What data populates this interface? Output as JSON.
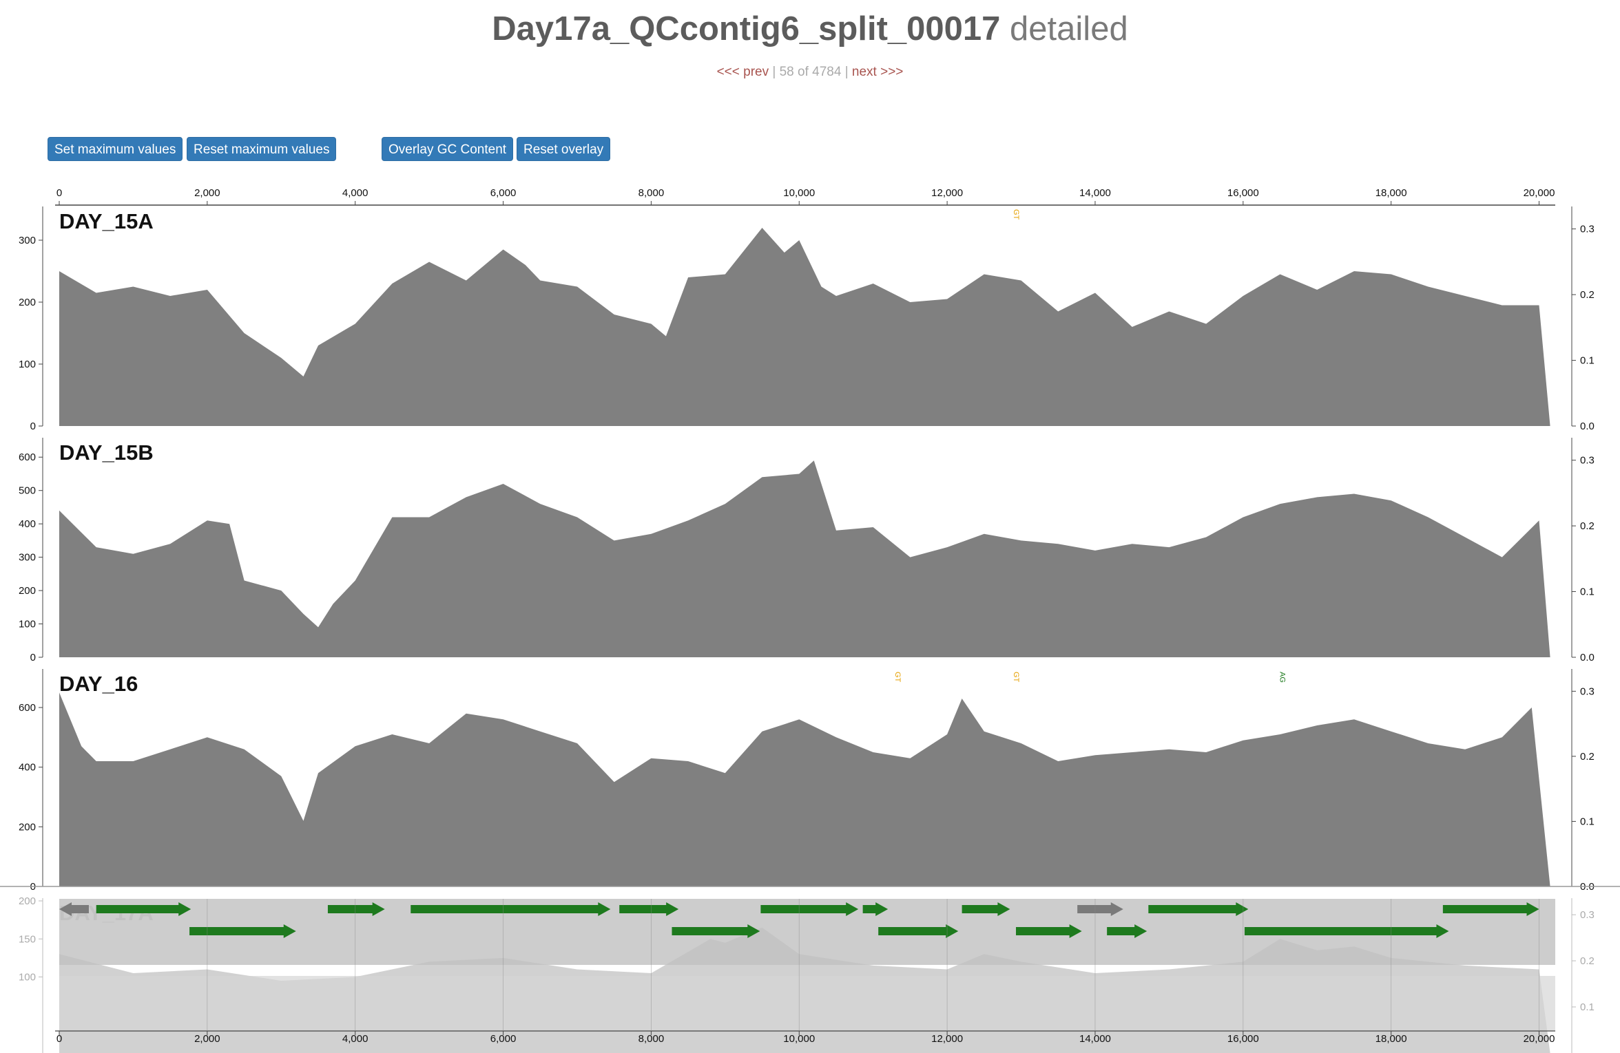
{
  "header": {
    "title": "Day17a_QCcontig6_split_00017",
    "title_suffix": "detailed",
    "nav_prev": "<<< prev",
    "nav_position": "58 of 4784",
    "nav_next": "next >>>",
    "nav_sep": "|"
  },
  "toolbar": {
    "set_max_label": "Set maximum values",
    "reset_max_label": "Reset maximum values",
    "overlay_gc_label": "Overlay GC Content",
    "reset_overlay_label": "Reset overlay"
  },
  "colors": {
    "coverage_fill": "#808080",
    "overlay_fill": "#cccccc",
    "gene_forward": "#1e7a1e",
    "gene_other": "#7a7a7a",
    "button": "#337ab7"
  },
  "chart_data": {
    "type": "area",
    "x_range": [
      0,
      20200
    ],
    "x_ticks": [
      "0",
      "2,000",
      "4,000",
      "6,000",
      "8,000",
      "10,000",
      "12,000",
      "14,000",
      "16,000",
      "18,000",
      "20,000"
    ],
    "x_tick_values": [
      0,
      2000,
      4000,
      6000,
      8000,
      10000,
      12000,
      14000,
      16000,
      18000,
      20000
    ],
    "right_axis_ticks": [
      "0.0",
      "0.1",
      "0.2",
      "0.3"
    ],
    "samples": [
      {
        "name": "DAY_15A",
        "ylim": [
          0,
          350
        ],
        "y_ticks": [
          0,
          100,
          200,
          300
        ],
        "x": [
          0,
          500,
          1000,
          1500,
          2000,
          2500,
          3000,
          3300,
          3500,
          4000,
          4500,
          5000,
          5500,
          6000,
          6300,
          6500,
          7000,
          7500,
          8000,
          8200,
          8500,
          9000,
          9500,
          9800,
          10000,
          10300,
          10500,
          11000,
          11500,
          12000,
          12500,
          13000,
          13500,
          14000,
          14500,
          15000,
          15500,
          16000,
          16500,
          17000,
          17500,
          18000,
          18500,
          19000,
          19500,
          20000,
          20150
        ],
        "values": [
          250,
          215,
          225,
          210,
          220,
          150,
          110,
          80,
          130,
          165,
          230,
          265,
          235,
          285,
          260,
          235,
          225,
          180,
          165,
          145,
          240,
          245,
          320,
          280,
          300,
          225,
          210,
          230,
          200,
          205,
          245,
          235,
          185,
          215,
          160,
          185,
          165,
          210,
          245,
          220,
          250,
          245,
          225,
          210,
          195,
          195,
          0
        ],
        "annotations": [
          {
            "x": 12900,
            "label": "GT"
          }
        ]
      },
      {
        "name": "DAY_15B",
        "ylim": [
          0,
          650
        ],
        "y_ticks": [
          0,
          100,
          200,
          300,
          400,
          500,
          600
        ],
        "x": [
          0,
          500,
          1000,
          1500,
          2000,
          2300,
          2500,
          3000,
          3300,
          3500,
          3700,
          4000,
          4500,
          5000,
          5500,
          6000,
          6500,
          7000,
          7500,
          8000,
          8500,
          9000,
          9500,
          10000,
          10200,
          10500,
          11000,
          11500,
          12000,
          12500,
          13000,
          13500,
          14000,
          14500,
          15000,
          15500,
          16000,
          16500,
          17000,
          17500,
          18000,
          18500,
          19000,
          19500,
          20000,
          20150
        ],
        "values": [
          440,
          330,
          310,
          340,
          410,
          400,
          230,
          200,
          130,
          90,
          160,
          230,
          420,
          420,
          480,
          520,
          460,
          420,
          350,
          370,
          410,
          460,
          540,
          550,
          590,
          380,
          390,
          300,
          330,
          370,
          350,
          340,
          320,
          340,
          330,
          360,
          420,
          460,
          480,
          490,
          470,
          420,
          360,
          300,
          410,
          0
        ],
        "annotations": []
      },
      {
        "name": "DAY_16",
        "ylim": [
          0,
          720
        ],
        "y_ticks": [
          0,
          200,
          400,
          600
        ],
        "x": [
          0,
          300,
          500,
          1000,
          1500,
          2000,
          2500,
          3000,
          3300,
          3500,
          4000,
          4500,
          5000,
          5500,
          6000,
          6500,
          7000,
          7500,
          8000,
          8500,
          9000,
          9500,
          10000,
          10500,
          11000,
          11500,
          12000,
          12200,
          12500,
          13000,
          13500,
          14000,
          14500,
          15000,
          15500,
          16000,
          16500,
          17000,
          17500,
          18000,
          18500,
          19000,
          19500,
          19900,
          20150
        ],
        "values": [
          650,
          470,
          420,
          420,
          460,
          500,
          460,
          370,
          220,
          380,
          470,
          510,
          480,
          580,
          560,
          520,
          480,
          350,
          430,
          420,
          380,
          520,
          560,
          500,
          450,
          430,
          510,
          630,
          520,
          480,
          420,
          440,
          450,
          460,
          450,
          490,
          510,
          540,
          560,
          520,
          480,
          460,
          500,
          600,
          0
        ],
        "annotations": [
          {
            "x": 11300,
            "label": "GT"
          },
          {
            "x": 12900,
            "label": "GT"
          },
          {
            "x": 16500,
            "label": "AG"
          }
        ]
      },
      {
        "name": "DAY_17A",
        "ylim": [
          0,
          200
        ],
        "y_ticks": [
          100,
          150,
          200
        ],
        "x": [
          0,
          1000,
          2000,
          3000,
          4000,
          5000,
          6000,
          7000,
          8000,
          8800,
          9000,
          9500,
          10000,
          11000,
          12000,
          12500,
          13000,
          14000,
          15000,
          16000,
          16500,
          17000,
          17500,
          18000,
          19000,
          20000,
          20150
        ],
        "values": [
          130,
          105,
          110,
          95,
          100,
          120,
          125,
          110,
          105,
          150,
          145,
          165,
          130,
          115,
          110,
          130,
          120,
          105,
          110,
          120,
          150,
          135,
          140,
          125,
          115,
          110,
          0
        ],
        "annotations": []
      }
    ],
    "genes": [
      {
        "start": 0,
        "end": 400,
        "row": 0,
        "strand": "reverse",
        "type": "other"
      },
      {
        "start": 500,
        "end": 1780,
        "row": 0,
        "strand": "forward",
        "type": "coding"
      },
      {
        "start": 1760,
        "end": 3200,
        "row": 1,
        "strand": "forward",
        "type": "coding"
      },
      {
        "start": 3630,
        "end": 4400,
        "row": 0,
        "strand": "forward",
        "type": "coding"
      },
      {
        "start": 4750,
        "end": 7450,
        "row": 0,
        "strand": "forward",
        "type": "coding"
      },
      {
        "start": 7570,
        "end": 8370,
        "row": 0,
        "strand": "forward",
        "type": "coding"
      },
      {
        "start": 8280,
        "end": 9470,
        "row": 1,
        "strand": "forward",
        "type": "coding"
      },
      {
        "start": 9480,
        "end": 10800,
        "row": 0,
        "strand": "forward",
        "type": "coding"
      },
      {
        "start": 10860,
        "end": 11200,
        "row": 0,
        "strand": "forward",
        "type": "coding"
      },
      {
        "start": 11070,
        "end": 12150,
        "row": 1,
        "strand": "forward",
        "type": "coding"
      },
      {
        "start": 12200,
        "end": 12850,
        "row": 0,
        "strand": "forward",
        "type": "coding"
      },
      {
        "start": 12930,
        "end": 13820,
        "row": 1,
        "strand": "forward",
        "type": "coding"
      },
      {
        "start": 13760,
        "end": 14380,
        "row": 0,
        "strand": "forward",
        "type": "other"
      },
      {
        "start": 14160,
        "end": 14700,
        "row": 1,
        "strand": "forward",
        "type": "coding"
      },
      {
        "start": 14720,
        "end": 16070,
        "row": 0,
        "strand": "forward",
        "type": "coding"
      },
      {
        "start": 16020,
        "end": 18780,
        "row": 1,
        "strand": "forward",
        "type": "coding"
      },
      {
        "start": 18700,
        "end": 20000,
        "row": 0,
        "strand": "forward",
        "type": "coding"
      }
    ]
  }
}
